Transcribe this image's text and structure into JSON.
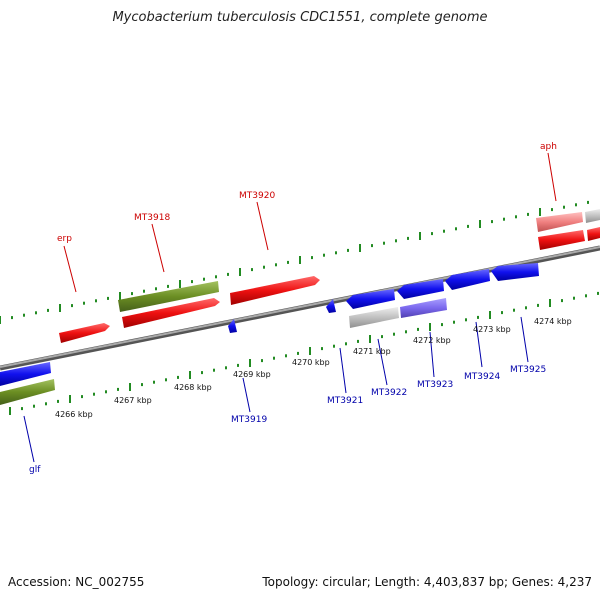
{
  "title": "Mycobacterium tuberculosis CDC1551, complete genome",
  "footer": {
    "accession": "Accession: NC_002755",
    "summary": "Topology: circular; Length: 4,403,837 bp; Genes: 4,237"
  },
  "colors": {
    "forward": "#ee1111",
    "reverse": "#1111ee",
    "olive": "#6b8e23",
    "grey": "#c0c0c0",
    "pink": "#f08080",
    "slate": "#7b68ee",
    "backbone": "#888888",
    "tick": "#228b22",
    "label_forward": "#cc0000",
    "label_reverse": "#0000aa"
  },
  "scale": {
    "ticks": [
      "4266 kbp",
      "4267 kbp",
      "4268 kbp",
      "4269 kbp",
      "4270 kbp",
      "4271 kbp",
      "4272 kbp",
      "4273 kbp",
      "4274 kbp"
    ]
  },
  "genes": {
    "labels_forward": [
      "erp",
      "MT3918",
      "MT3920",
      "aph"
    ],
    "labels_reverse": [
      "glf",
      "MT3919",
      "MT3921",
      "MT3922",
      "MT3923",
      "MT3924",
      "MT3925"
    ]
  }
}
